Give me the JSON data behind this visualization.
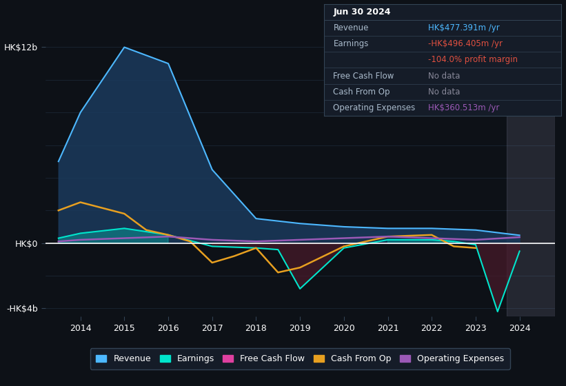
{
  "background_color": "#0d1117",
  "plot_bg_color": "#0d1117",
  "revenue_color": "#4db8ff",
  "revenue_fill": "#1a3a5c",
  "earnings_color": "#00e5cc",
  "earnings_fill_neg": "#4a1a2a",
  "cash_from_op_color": "#e8a020",
  "free_cash_flow_color": "#e040a0",
  "operating_expenses_color": "#9b59b6",
  "zero_line_color": "#ffffff",
  "grid_color": "#1e2a3a",
  "text_color": "#ffffff",
  "ylim": [
    -4500,
    13000
  ],
  "xtick_years": [
    2014,
    2015,
    2016,
    2017,
    2018,
    2019,
    2020,
    2021,
    2022,
    2023,
    2024
  ],
  "tooltip_date": "Jun 30 2024",
  "tooltip_revenue_label": "Revenue",
  "tooltip_revenue_val": "HK$477.391m /yr",
  "tooltip_earnings_label": "Earnings",
  "tooltip_earnings_val": "-HK$496.405m /yr",
  "tooltip_margin_val": "-104.0% profit margin",
  "tooltip_fcf_label": "Free Cash Flow",
  "tooltip_fcf_val": "No data",
  "tooltip_cashop_label": "Cash From Op",
  "tooltip_cashop_val": "No data",
  "tooltip_opex_label": "Operating Expenses",
  "tooltip_opex_val": "HK$360.513m /yr",
  "legend_items": [
    {
      "label": "Revenue",
      "color": "#4db8ff"
    },
    {
      "label": "Earnings",
      "color": "#00e5cc"
    },
    {
      "label": "Free Cash Flow",
      "color": "#e040a0"
    },
    {
      "label": "Cash From Op",
      "color": "#e8a020"
    },
    {
      "label": "Operating Expenses",
      "color": "#9b59b6"
    }
  ]
}
